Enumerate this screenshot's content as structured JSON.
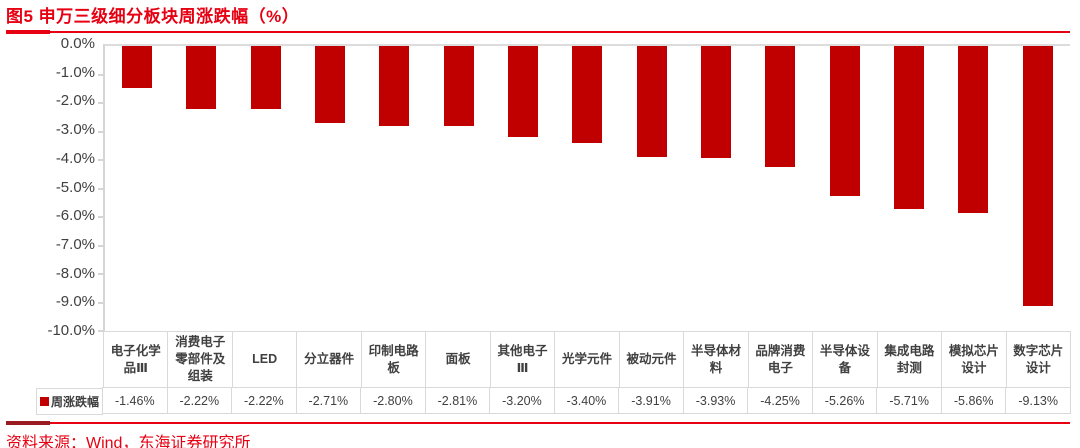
{
  "title": "图5  申万三级细分板块周涨跌幅（%）",
  "source": "资料来源：Wind，东海证券研究所",
  "legend": {
    "label": "周涨跌幅",
    "swatch_color": "#c00000"
  },
  "colors": {
    "accent_red": "#e60012",
    "bar_red": "#c00000",
    "axis_grey": "#d5d5d5",
    "text_grey": "#404040"
  },
  "chart_data": {
    "type": "bar",
    "title": "申万三级细分板块周涨跌幅（%）",
    "categories": [
      "电子化学品Ⅲ",
      "消费电子零部件及组装",
      "LED",
      "分立器件",
      "印制电路板",
      "面板",
      "其他电子Ⅲ",
      "光学元件",
      "被动元件",
      "半导体材料",
      "品牌消费电子",
      "半导体设备",
      "集成电路封测",
      "模拟芯片设计",
      "数字芯片设计"
    ],
    "values": [
      -1.46,
      -2.22,
      -2.22,
      -2.71,
      -2.8,
      -2.81,
      -3.2,
      -3.4,
      -3.91,
      -3.93,
      -4.25,
      -5.26,
      -5.71,
      -5.86,
      -9.13
    ],
    "value_labels": [
      "-1.46%",
      "-2.22%",
      "-2.22%",
      "-2.71%",
      "-2.80%",
      "-2.81%",
      "-3.20%",
      "-3.40%",
      "-3.91%",
      "-3.93%",
      "-4.25%",
      "-5.26%",
      "-5.71%",
      "-5.86%",
      "-9.13%"
    ],
    "series_name": "周涨跌幅",
    "xlabel": "",
    "ylabel": "",
    "ylim": [
      -10,
      0
    ],
    "ytick_labels": [
      "0.0%",
      "-1.0%",
      "-2.0%",
      "-3.0%",
      "-4.0%",
      "-5.0%",
      "-6.0%",
      "-7.0%",
      "-8.0%",
      "-9.0%",
      "-10.0%"
    ],
    "grid": false,
    "legend_position": "bottom-table"
  }
}
